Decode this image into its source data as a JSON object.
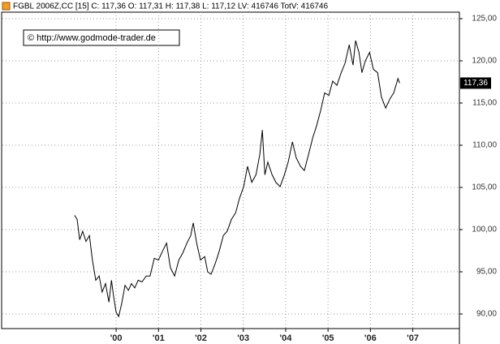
{
  "chart_data": {
    "type": "line",
    "title": "FGBL 2006Z,CC [15] C: 117,36 O: 117,31 H: 117,38 L: 117,12 LV: 416746 TotV: 416746",
    "annotation": "© http://www.godmode-trader.de",
    "color": "#000000",
    "grid": true,
    "x": [
      1999.02,
      1999.08,
      1999.14,
      1999.21,
      1999.29,
      1999.37,
      1999.44,
      1999.52,
      1999.6,
      1999.67,
      1999.75,
      1999.83,
      1999.89,
      1999.94,
      2000.0,
      2000.06,
      2000.13,
      2000.21,
      2000.29,
      2000.36,
      2000.44,
      2000.52,
      2000.61,
      2000.71,
      2000.8,
      2000.9,
      2001.0,
      2001.09,
      2001.19,
      2001.28,
      2001.38,
      2001.48,
      2001.57,
      2001.67,
      2001.76,
      2001.82,
      2001.9,
      2001.99,
      2002.09,
      2002.16,
      2002.24,
      2002.34,
      2002.43,
      2002.53,
      2002.62,
      2002.72,
      2002.82,
      2002.91,
      2003.01,
      2003.1,
      2003.2,
      2003.3,
      2003.39,
      2003.45,
      2003.51,
      2003.58,
      2003.68,
      2003.77,
      2003.87,
      2003.97,
      2004.06,
      2004.16,
      2004.25,
      2004.35,
      2004.44,
      2004.54,
      2004.64,
      2004.73,
      2004.83,
      2004.92,
      2005.02,
      2005.11,
      2005.21,
      2005.31,
      2005.4,
      2005.5,
      2005.59,
      2005.65,
      2005.73,
      2005.8,
      2005.88,
      2005.98,
      2006.07,
      2006.17,
      2006.26,
      2006.36,
      2006.46,
      2006.55,
      2006.65,
      2006.69
    ],
    "values": [
      101.7,
      101.2,
      98.8,
      99.8,
      98.6,
      99.3,
      96.4,
      94.0,
      94.5,
      92.6,
      93.6,
      91.4,
      94.0,
      92.1,
      90.2,
      89.7,
      91.2,
      93.4,
      92.8,
      93.6,
      93.1,
      94.0,
      93.8,
      94.5,
      94.5,
      96.6,
      96.4,
      97.4,
      98.4,
      95.5,
      94.5,
      96.4,
      97.2,
      98.4,
      99.3,
      100.8,
      98.4,
      96.4,
      96.8,
      95.0,
      94.7,
      96.0,
      97.4,
      99.3,
      99.8,
      101.2,
      102.0,
      103.7,
      105.1,
      107.5,
      105.6,
      106.5,
      108.9,
      111.8,
      106.5,
      108.0,
      106.5,
      105.6,
      105.1,
      106.5,
      108.0,
      110.4,
      108.5,
      107.5,
      107.0,
      108.9,
      110.9,
      112.3,
      114.2,
      116.2,
      115.9,
      117.6,
      117.1,
      118.6,
      119.7,
      121.9,
      119.5,
      122.4,
      121.0,
      118.6,
      120.0,
      121.0,
      119.0,
      118.6,
      115.7,
      114.4,
      115.5,
      116.2,
      117.9,
      117.36
    ],
    "price_marker": {
      "value": 117.36,
      "label": "117,36"
    },
    "xlim": [
      1997.26,
      2008.1
    ],
    "xticks": [
      {
        "value": 2000,
        "label": "'00"
      },
      {
        "value": 2001,
        "label": "'01"
      },
      {
        "value": 2002,
        "label": "'02"
      },
      {
        "value": 2003,
        "label": "'03"
      },
      {
        "value": 2004,
        "label": "'04"
      },
      {
        "value": 2005,
        "label": "'05"
      },
      {
        "value": 2006,
        "label": "'06"
      },
      {
        "value": 2007,
        "label": "'07"
      }
    ],
    "ylim": [
      88.27,
      125.77
    ],
    "yticks": [
      {
        "value": 90,
        "label": "90,00"
      },
      {
        "value": 95,
        "label": "95,00"
      },
      {
        "value": 100,
        "label": "100,00"
      },
      {
        "value": 105,
        "label": "105,00"
      },
      {
        "value": 110,
        "label": "110,00"
      },
      {
        "value": 115,
        "label": "115,00"
      },
      {
        "value": 120,
        "label": "120,00"
      },
      {
        "value": 125,
        "label": "125,00"
      }
    ]
  }
}
